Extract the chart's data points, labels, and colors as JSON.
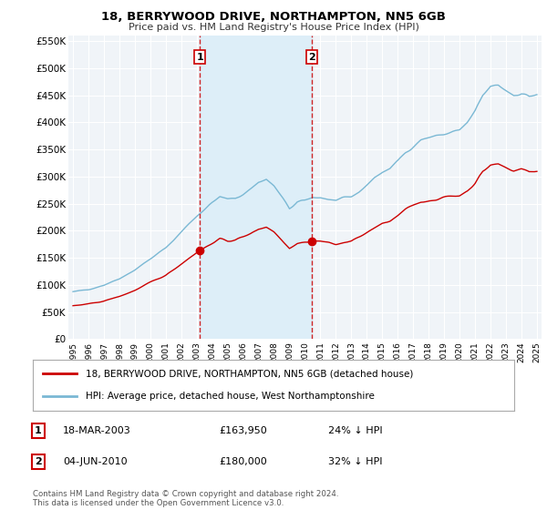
{
  "title": "18, BERRYWOOD DRIVE, NORTHAMPTON, NN5 6GB",
  "subtitle": "Price paid vs. HM Land Registry's House Price Index (HPI)",
  "legend_label1": "18, BERRYWOOD DRIVE, NORTHAMPTON, NN5 6GB (detached house)",
  "legend_label2": "HPI: Average price, detached house, West Northamptonshire",
  "table_row1": [
    "1",
    "18-MAR-2003",
    "£163,950",
    "24% ↓ HPI"
  ],
  "table_row2": [
    "2",
    "04-JUN-2010",
    "£180,000",
    "32% ↓ HPI"
  ],
  "footnote": "Contains HM Land Registry data © Crown copyright and database right 2024.\nThis data is licensed under the Open Government Licence v3.0.",
  "line1_color": "#cc0000",
  "line2_color": "#7ab8d4",
  "shade_color": "#ddeef8",
  "background_color": "#ffffff",
  "plot_bg_color": "#f0f4f8",
  "grid_color": "#ffffff",
  "marker1_x": 2003.21,
  "marker2_x": 2010.42,
  "ylim_min": 0,
  "ylim_max": 560000,
  "xlim_min": 1994.7,
  "xlim_max": 2025.3,
  "yticks": [
    0,
    50000,
    100000,
    150000,
    200000,
    250000,
    300000,
    350000,
    400000,
    450000,
    500000,
    550000
  ],
  "ytick_labels": [
    "£0",
    "£50K",
    "£100K",
    "£150K",
    "£200K",
    "£250K",
    "£300K",
    "£350K",
    "£400K",
    "£450K",
    "£500K",
    "£550K"
  ]
}
